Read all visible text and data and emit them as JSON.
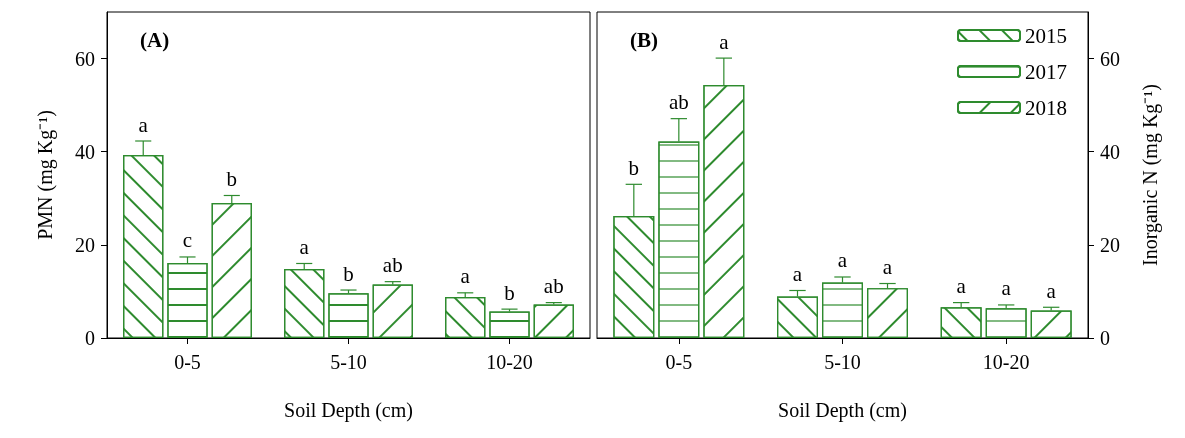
{
  "chart_data": [
    {
      "type": "bar",
      "title": "(A)",
      "xlabel": "Soil Depth (cm)",
      "ylabel": "PMN (mg Kg⁻¹)",
      "categories": [
        "0-5",
        "5-10",
        "10-20"
      ],
      "ylim": [
        0,
        70
      ],
      "yticks": [
        0,
        20,
        40,
        60
      ],
      "grid": false,
      "series": [
        {
          "color": "#2e8b2e",
          "values": [
            39.3,
            14.8,
            8.8
          ],
          "errors": [
            3.0,
            1.2,
            0.9
          ],
          "value_labels": [
            "a",
            "a",
            "a"
          ]
        },
        {
          "color": "#2e8b2e",
          "values": [
            16.1,
            9.6,
            5.7
          ],
          "errors": [
            1.3,
            0.7,
            0.5
          ],
          "value_labels": [
            "c",
            "b",
            "b"
          ]
        },
        {
          "color": "#2e8b2e",
          "values": [
            29.0,
            11.5,
            7.2
          ],
          "errors": [
            1.6,
            0.6,
            0.4
          ],
          "value_labels": [
            "b",
            "ab",
            "ab"
          ]
        }
      ]
    },
    {
      "type": "bar",
      "title": "(B)",
      "xlabel": "Soil Depth (cm)",
      "ylabel": "Inorganic N (mg Kg⁻¹)",
      "categories": [
        "0-5",
        "5-10",
        "10-20"
      ],
      "ylim": [
        0,
        70
      ],
      "yticks": [
        0,
        20,
        40,
        60
      ],
      "grid": false,
      "legend": "top right",
      "series": [
        {
          "name": "2015",
          "color": "#2e8b2e",
          "values": [
            26.2,
            8.9,
            6.6
          ],
          "errors": [
            6.8,
            1.3,
            1.0
          ],
          "value_labels": [
            "b",
            "a",
            "a"
          ]
        },
        {
          "name": "2017",
          "color": "#2e8b2e",
          "values": [
            42.2,
            11.9,
            6.4
          ],
          "errors": [
            4.9,
            1.2,
            0.7
          ],
          "value_labels": [
            "ab",
            "a",
            "a"
          ]
        },
        {
          "name": "2018",
          "color": "#2e8b2e",
          "values": [
            54.3,
            10.7,
            5.9
          ],
          "errors": [
            5.8,
            1.0,
            0.7
          ],
          "value_labels": [
            "a",
            "a",
            "a"
          ]
        }
      ]
    }
  ]
}
